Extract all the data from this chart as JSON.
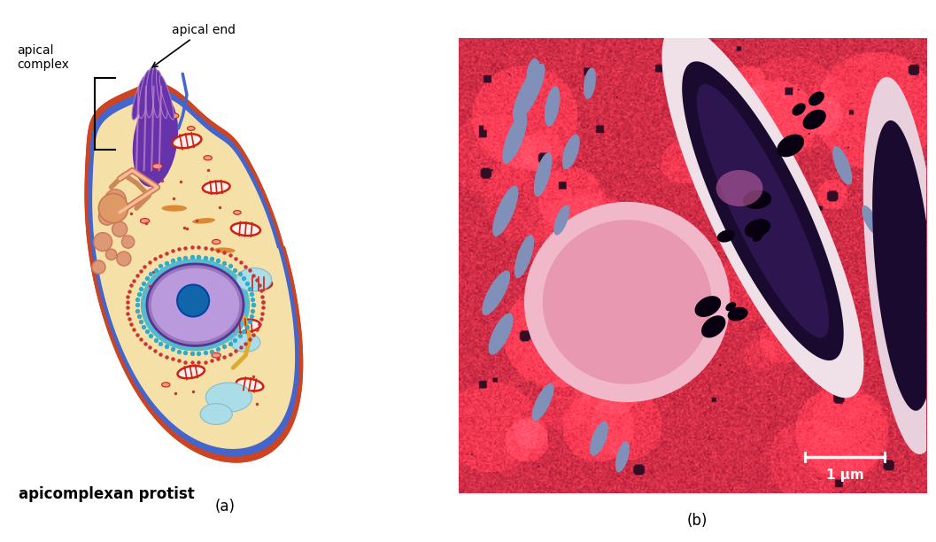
{
  "fig_width": 10.57,
  "fig_height": 6.12,
  "dpi": 100,
  "bg_color": "#ffffff",
  "panel_a_label": "(a)",
  "panel_b_label": "(b)",
  "title_a": "apicomplexan protist",
  "label_apical_complex": "apical\ncomplex",
  "label_apical_end": "apical end",
  "scale_bar_text": "1 μm",
  "cell_fill": "#f5e0a8",
  "cell_outline_outer": "#cc4422",
  "cell_outline_inner": "#4466cc",
  "apical_fill_dark": "#6633aa",
  "apical_fill_light": "#aa77cc",
  "apical_stripe": "#cc88cc",
  "nucleus_fill": "#9977bb",
  "nucleus_outline": "#553399",
  "nucleolus_fill": "#1166aa",
  "mito_fill": "#cc2211",
  "mito_bg": "#ffffff",
  "golgi_fill": "#cc7755",
  "vesicle_fill": "#dd9977",
  "ribosome_cyan": "#33aacc",
  "ribosome_red": "#cc3333",
  "vacuole_fill": "#aadde8",
  "er_color": "#cc8855",
  "pink_vesicle": "#ee9988",
  "orange_bar": "#dd8833"
}
